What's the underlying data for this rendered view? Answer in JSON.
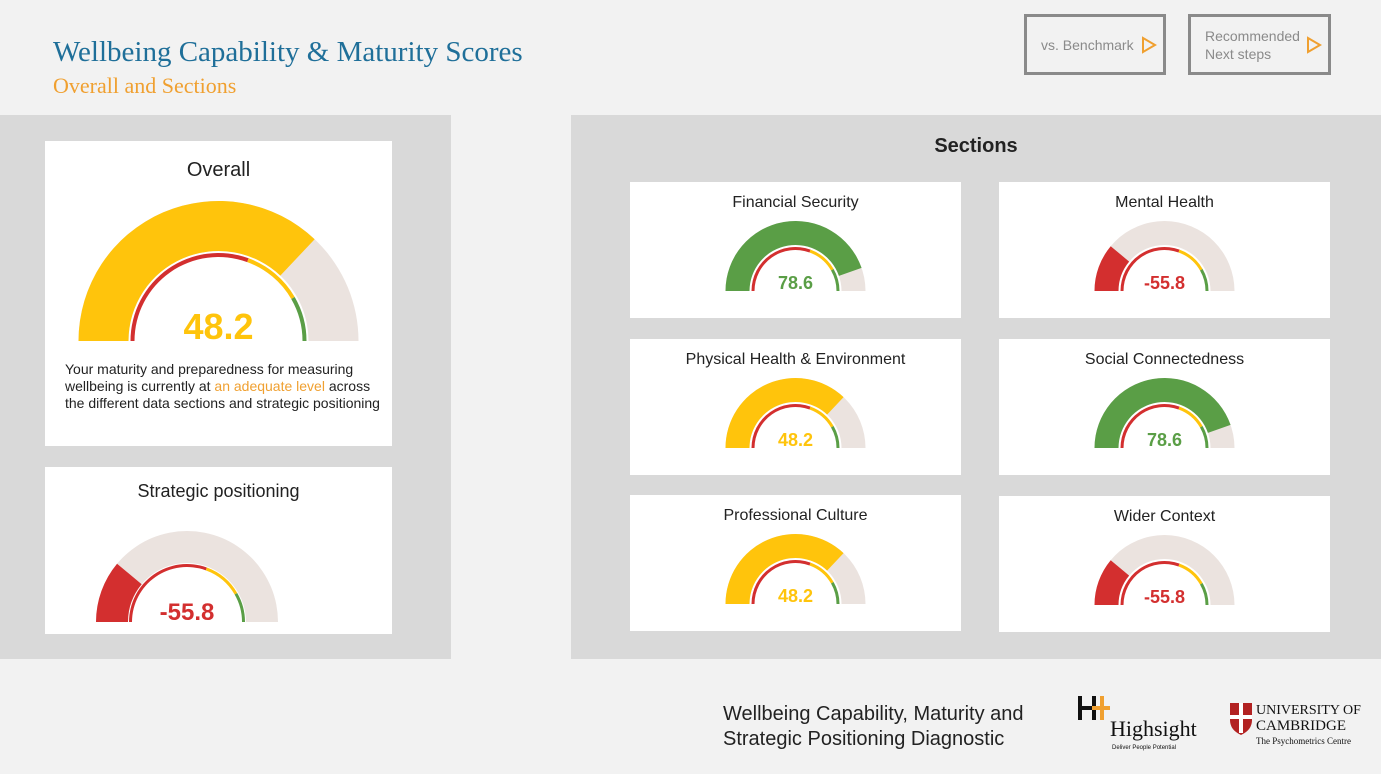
{
  "header": {
    "title": "Wellbeing Capability & Maturity Scores",
    "subtitle": "Overall and Sections"
  },
  "nav": {
    "benchmark_label": "vs. Benchmark",
    "next_line1": "Recommended",
    "next_line2": "Next steps",
    "arrow_icon": "play-triangle-icon"
  },
  "colors": {
    "yellow": "#ffc40c",
    "green": "#5a9e46",
    "red": "#d32f2f",
    "track": "#ebe3df",
    "accent": "#f0a030",
    "title_blue": "#1f6f99"
  },
  "overall": {
    "title": "Overall",
    "score": 48.2,
    "score_text": "48.2",
    "desc_before": "Your maturity and preparedness for measuring wellbeing is currently at ",
    "desc_highlight": "an adequate level",
    "desc_after": " across the different data sections and strategic positioning"
  },
  "strategic": {
    "title": "Strategic positioning",
    "score": -55.8,
    "score_text": "-55.8"
  },
  "sections": {
    "title": "Sections",
    "items": [
      {
        "title": "Financial Security",
        "score": 78.6,
        "score_text": "78.6"
      },
      {
        "title": "Mental Health",
        "score": -55.8,
        "score_text": "-55.8"
      },
      {
        "title": "Physical Health & Environment",
        "score": 48.2,
        "score_text": "48.2"
      },
      {
        "title": "Social Connectedness",
        "score": 78.6,
        "score_text": "78.6"
      },
      {
        "title": "Professional Culture",
        "score": 48.2,
        "score_text": "48.2"
      },
      {
        "title": "Wider Context",
        "score": -55.8,
        "score_text": "-55.8"
      }
    ]
  },
  "footer": {
    "line1": "Wellbeing Capability, Maturity and",
    "line2": "Strategic Positioning Diagnostic",
    "highsight_name": "Highsight",
    "highsight_tagline": "Deliver People Potential",
    "cambridge_line1": "UNIVERSITY OF",
    "cambridge_line2": "CAMBRIDGE",
    "cambridge_line3": "The Psychometrics Centre"
  }
}
